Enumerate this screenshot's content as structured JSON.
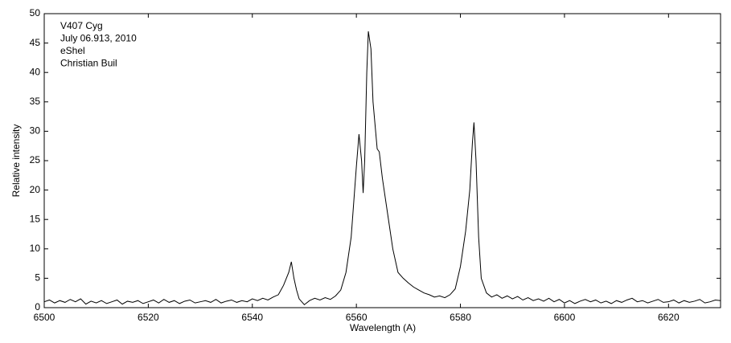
{
  "chart_data": {
    "type": "line",
    "annotations": [
      "V407 Cyg",
      "July 06.913, 2010",
      "eShel",
      "Christian Buil"
    ],
    "xlabel": "Wavelength (A)",
    "ylabel": "Relative intensity",
    "xlim": [
      6500,
      6630
    ],
    "ylim": [
      0,
      50
    ],
    "xticks": [
      6500,
      6520,
      6540,
      6560,
      6580,
      6600,
      6620
    ],
    "yticks": [
      0,
      5,
      10,
      15,
      20,
      25,
      30,
      35,
      40,
      45,
      50
    ],
    "color": "#000000",
    "x": [
      6500,
      6501,
      6502,
      6503,
      6504,
      6505,
      6506,
      6507,
      6508,
      6509,
      6510,
      6511,
      6512,
      6513,
      6514,
      6515,
      6516,
      6517,
      6518,
      6519,
      6520,
      6521,
      6522,
      6523,
      6524,
      6525,
      6526,
      6527,
      6528,
      6529,
      6530,
      6531,
      6532,
      6533,
      6534,
      6535,
      6536,
      6537,
      6538,
      6539,
      6540,
      6541,
      6542,
      6543,
      6544,
      6545,
      6546,
      6547,
      6547.5,
      6548,
      6548.5,
      6549,
      6550,
      6551,
      6552,
      6553,
      6554,
      6555,
      6556,
      6557,
      6558,
      6559,
      6560,
      6560.5,
      6561,
      6561.3,
      6561.6,
      6562,
      6562.3,
      6562.8,
      6563.2,
      6563.6,
      6564,
      6564.4,
      6565,
      6566,
      6567,
      6568,
      6569,
      6570,
      6571,
      6572,
      6573,
      6574,
      6575,
      6576,
      6577,
      6578,
      6579,
      6580,
      6581,
      6581.8,
      6582.3,
      6582.6,
      6583,
      6583.5,
      6584,
      6585,
      6586,
      6587,
      6588,
      6589,
      6590,
      6591,
      6592,
      6593,
      6594,
      6595,
      6596,
      6597,
      6598,
      6599,
      6600,
      6601,
      6602,
      6603,
      6604,
      6605,
      6606,
      6607,
      6608,
      6609,
      6610,
      6611,
      6612,
      6613,
      6614,
      6615,
      6616,
      6617,
      6618,
      6619,
      6620,
      6621,
      6622,
      6623,
      6624,
      6625,
      6626,
      6627,
      6628,
      6629,
      6630
    ],
    "values": [
      1.0,
      1.3,
      0.8,
      1.2,
      0.9,
      1.4,
      1.0,
      1.5,
      0.6,
      1.1,
      0.8,
      1.2,
      0.7,
      1.0,
      1.3,
      0.6,
      1.1,
      0.9,
      1.2,
      0.7,
      1.0,
      1.3,
      0.8,
      1.4,
      0.9,
      1.2,
      0.7,
      1.1,
      1.3,
      0.8,
      1.0,
      1.2,
      0.9,
      1.4,
      0.8,
      1.1,
      1.3,
      0.9,
      1.2,
      1.0,
      1.5,
      1.2,
      1.6,
      1.3,
      1.8,
      2.2,
      3.8,
      6.0,
      7.8,
      5.0,
      3.0,
      1.5,
      0.5,
      1.2,
      1.6,
      1.3,
      1.7,
      1.4,
      2.0,
      3.0,
      6,
      12,
      24,
      29.5,
      25,
      19.5,
      25,
      40,
      47,
      44,
      35,
      31,
      27,
      26.5,
      22,
      16,
      10,
      6,
      5,
      4.2,
      3.5,
      3.0,
      2.5,
      2.2,
      1.8,
      2.0,
      1.7,
      2.2,
      3.2,
      7,
      13,
      20,
      28,
      31.5,
      25,
      12,
      5,
      2.5,
      1.8,
      2.2,
      1.6,
      2.0,
      1.5,
      1.9,
      1.3,
      1.7,
      1.2,
      1.5,
      1.1,
      1.6,
      1.0,
      1.4,
      0.8,
      1.2,
      0.7,
      1.1,
      1.4,
      1.0,
      1.3,
      0.8,
      1.1,
      0.7,
      1.2,
      0.9,
      1.3,
      1.6,
      1.0,
      1.2,
      0.8,
      1.1,
      1.4,
      0.9,
      1.0,
      1.3,
      0.8,
      1.2,
      0.9,
      1.1,
      1.4,
      0.8,
      1.0,
      1.3,
      1.2
    ]
  }
}
